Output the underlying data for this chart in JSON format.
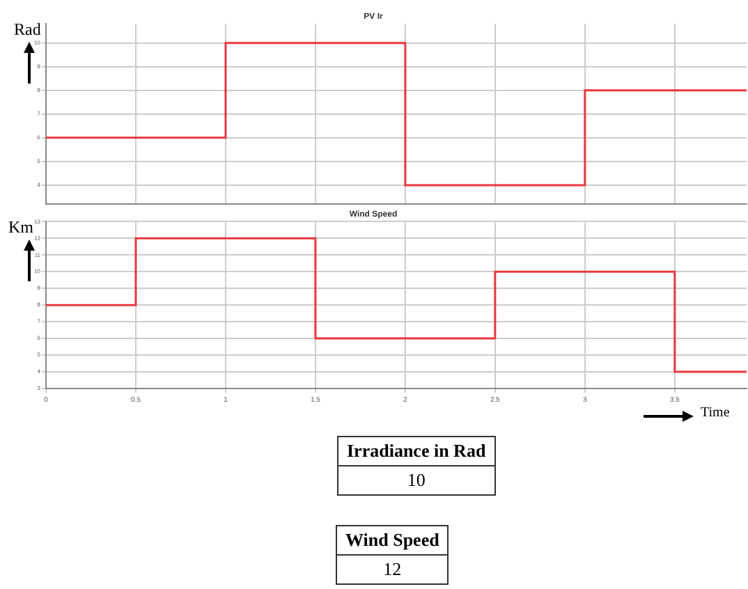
{
  "chart_data": [
    {
      "type": "step",
      "title": "PV Ir",
      "ylabel": "Rad",
      "x": [
        0,
        1,
        2,
        3,
        3.9
      ],
      "series": [
        {
          "color": "#e8383d",
          "values": [
            6,
            10,
            4,
            8,
            8
          ]
        }
      ],
      "xlim": [
        0,
        3.9
      ],
      "ylim": [
        3.2,
        10.8
      ],
      "xticks": [
        0,
        0.5,
        1,
        1.5,
        2,
        2.5,
        3,
        3.5
      ],
      "yticks": [
        4,
        5,
        6,
        7,
        8,
        9,
        10
      ],
      "grid": true,
      "tick_labels": "y",
      "marker": "none"
    },
    {
      "type": "step",
      "title": "Wind Speed",
      "ylabel": "Km",
      "xlabel": "Time",
      "x": [
        0,
        0.5,
        1.5,
        2.5,
        3.5,
        3.9
      ],
      "series": [
        {
          "color": "#e8383d",
          "values": [
            8,
            12,
            6,
            10,
            4,
            4
          ]
        }
      ],
      "xlim": [
        0,
        3.9
      ],
      "ylim": [
        3,
        13
      ],
      "xticks": [
        0,
        0.5,
        1,
        1.5,
        2,
        2.5,
        3,
        3.5
      ],
      "yticks": [
        3,
        4,
        5,
        6,
        7,
        8,
        9,
        10,
        11,
        12,
        13
      ],
      "grid": true,
      "marker": "none"
    },
    {
      "type": "other",
      "annotations": [
        "Irradiance in Rad",
        "10",
        "Wind Speed",
        "12"
      ]
    }
  ]
}
